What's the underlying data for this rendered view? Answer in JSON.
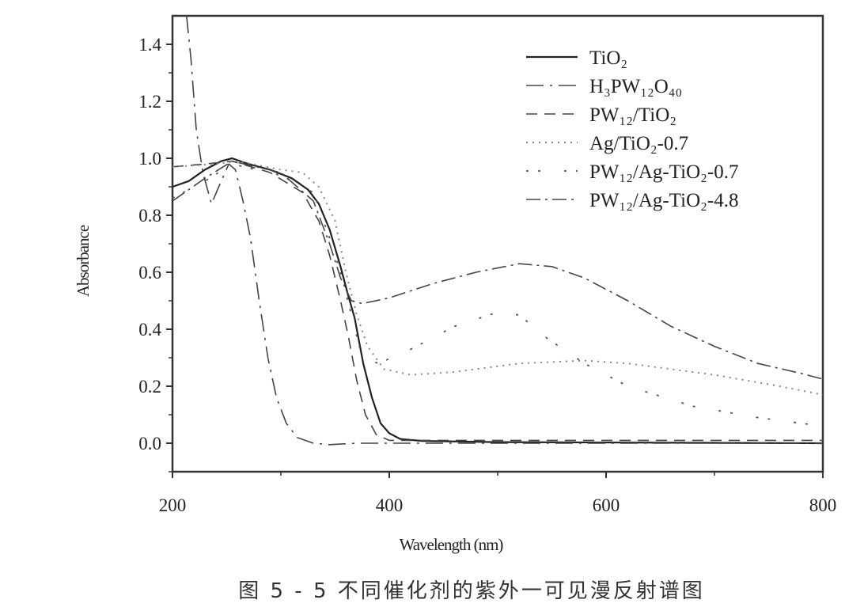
{
  "chart_data": {
    "type": "line",
    "title": "",
    "xlabel": "Wavelength (nm)",
    "ylabel": "Absorbance",
    "xlim": [
      200,
      800
    ],
    "ylim": [
      -0.1,
      1.5
    ],
    "xticks": [
      "200",
      "400",
      "600",
      "800"
    ],
    "xtick_values": [
      200,
      400,
      600,
      800
    ],
    "yticks": [
      "0.0",
      "0.2",
      "0.4",
      "0.6",
      "0.8",
      "1.0",
      "1.2",
      "1.4"
    ],
    "ytick_values": [
      0,
      0.2,
      0.4,
      0.6,
      0.8,
      1.0,
      1.2,
      1.4
    ],
    "grid": false,
    "legend_position": "top-right",
    "series": [
      {
        "name": "TiO₂",
        "style": "solid",
        "points": [
          [
            200,
            0.9
          ],
          [
            215,
            0.92
          ],
          [
            230,
            0.96
          ],
          [
            245,
            0.99
          ],
          [
            255,
            1.0
          ],
          [
            270,
            0.98
          ],
          [
            290,
            0.96
          ],
          [
            310,
            0.93
          ],
          [
            325,
            0.89
          ],
          [
            335,
            0.84
          ],
          [
            345,
            0.75
          ],
          [
            355,
            0.62
          ],
          [
            362,
            0.52
          ],
          [
            368,
            0.44
          ],
          [
            376,
            0.28
          ],
          [
            384,
            0.16
          ],
          [
            392,
            0.07
          ],
          [
            400,
            0.035
          ],
          [
            410,
            0.015
          ],
          [
            430,
            0.008
          ],
          [
            500,
            0.004
          ],
          [
            800,
            0.0
          ]
        ]
      },
      {
        "name": "H₃PW₁₂O₄₀",
        "style": "dashdot-long",
        "points": [
          [
            213,
            1.5
          ],
          [
            217,
            1.35
          ],
          [
            222,
            1.1
          ],
          [
            228,
            0.95
          ],
          [
            236,
            0.84
          ],
          [
            245,
            0.92
          ],
          [
            252,
            0.98
          ],
          [
            258,
            0.96
          ],
          [
            265,
            0.85
          ],
          [
            272,
            0.72
          ],
          [
            280,
            0.5
          ],
          [
            288,
            0.3
          ],
          [
            296,
            0.16
          ],
          [
            305,
            0.07
          ],
          [
            315,
            0.02
          ],
          [
            330,
            0.0
          ],
          [
            345,
            -0.005
          ],
          [
            370,
            0.0
          ],
          [
            800,
            0.0
          ]
        ]
      },
      {
        "name": "PW₁₂/TiO₂",
        "style": "dashed",
        "points": [
          [
            200,
            0.97
          ],
          [
            230,
            0.98
          ],
          [
            255,
            0.99
          ],
          [
            290,
            0.95
          ],
          [
            320,
            0.88
          ],
          [
            335,
            0.78
          ],
          [
            345,
            0.66
          ],
          [
            355,
            0.5
          ],
          [
            362,
            0.38
          ],
          [
            370,
            0.22
          ],
          [
            378,
            0.1
          ],
          [
            388,
            0.03
          ],
          [
            400,
            0.01
          ],
          [
            800,
            0.01
          ]
        ]
      },
      {
        "name": "Ag/TiO₂-0.7",
        "style": "dotted",
        "points": [
          [
            200,
            0.97
          ],
          [
            240,
            0.98
          ],
          [
            260,
            0.99
          ],
          [
            300,
            0.96
          ],
          [
            320,
            0.95
          ],
          [
            335,
            0.9
          ],
          [
            350,
            0.78
          ],
          [
            360,
            0.6
          ],
          [
            370,
            0.45
          ],
          [
            380,
            0.34
          ],
          [
            395,
            0.26
          ],
          [
            420,
            0.24
          ],
          [
            460,
            0.25
          ],
          [
            520,
            0.28
          ],
          [
            580,
            0.29
          ],
          [
            620,
            0.28
          ],
          [
            700,
            0.24
          ],
          [
            760,
            0.2
          ],
          [
            800,
            0.17
          ]
        ]
      },
      {
        "name": "PW₁₂/Ag-TiO₂-0.7",
        "style": "dashdotdot",
        "points": [
          [
            200,
            0.86
          ],
          [
            230,
            0.92
          ],
          [
            255,
            0.98
          ],
          [
            300,
            0.94
          ],
          [
            330,
            0.88
          ],
          [
            345,
            0.72
          ],
          [
            355,
            0.6
          ],
          [
            365,
            0.45
          ],
          [
            375,
            0.3
          ],
          [
            390,
            0.28
          ],
          [
            420,
            0.33
          ],
          [
            460,
            0.41
          ],
          [
            500,
            0.46
          ],
          [
            520,
            0.45
          ],
          [
            545,
            0.37
          ],
          [
            580,
            0.28
          ],
          [
            620,
            0.2
          ],
          [
            680,
            0.13
          ],
          [
            740,
            0.09
          ],
          [
            800,
            0.06
          ]
        ]
      },
      {
        "name": "PW₁₂/Ag-TiO₂-4.8",
        "style": "dashdot",
        "points": [
          [
            200,
            0.85
          ],
          [
            230,
            0.93
          ],
          [
            255,
            0.99
          ],
          [
            300,
            0.95
          ],
          [
            330,
            0.85
          ],
          [
            345,
            0.7
          ],
          [
            355,
            0.58
          ],
          [
            365,
            0.5
          ],
          [
            375,
            0.49
          ],
          [
            400,
            0.51
          ],
          [
            440,
            0.56
          ],
          [
            480,
            0.6
          ],
          [
            520,
            0.63
          ],
          [
            550,
            0.62
          ],
          [
            580,
            0.58
          ],
          [
            620,
            0.5
          ],
          [
            660,
            0.41
          ],
          [
            700,
            0.34
          ],
          [
            740,
            0.28
          ],
          [
            780,
            0.245
          ],
          [
            800,
            0.225
          ]
        ]
      }
    ]
  },
  "caption": "图 5 - 5   不同催化剂的紫外一可见漫反射谱图"
}
